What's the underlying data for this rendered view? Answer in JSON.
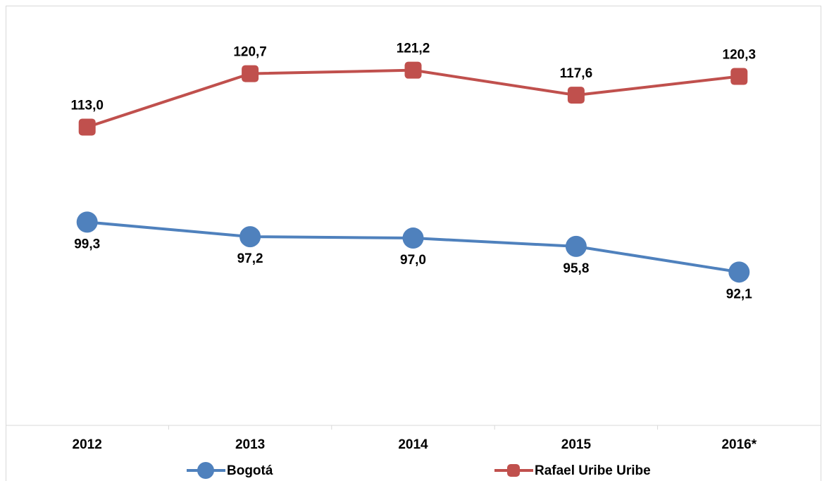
{
  "chart_data": {
    "type": "line",
    "categories": [
      "2012",
      "2013",
      "2014",
      "2015",
      "2016*"
    ],
    "series": [
      {
        "name": "Bogotá",
        "color": "#4f81bd",
        "marker": "circle",
        "values": [
          99.3,
          97.2,
          97.0,
          95.8,
          92.1
        ],
        "value_labels": [
          "99,3",
          "97,2",
          "97,0",
          "95,8",
          "92,1"
        ],
        "label_position": "below"
      },
      {
        "name": "Rafael Uribe Uribe",
        "color": "#c0504d",
        "marker": "square",
        "values": [
          113.0,
          120.7,
          121.2,
          117.6,
          120.3
        ],
        "value_labels": [
          "113,0",
          "120,7",
          "121,2",
          "117,6",
          "120,3"
        ],
        "label_position": "above"
      }
    ],
    "ylim": [
      70,
      130
    ],
    "legend": "bottom"
  }
}
